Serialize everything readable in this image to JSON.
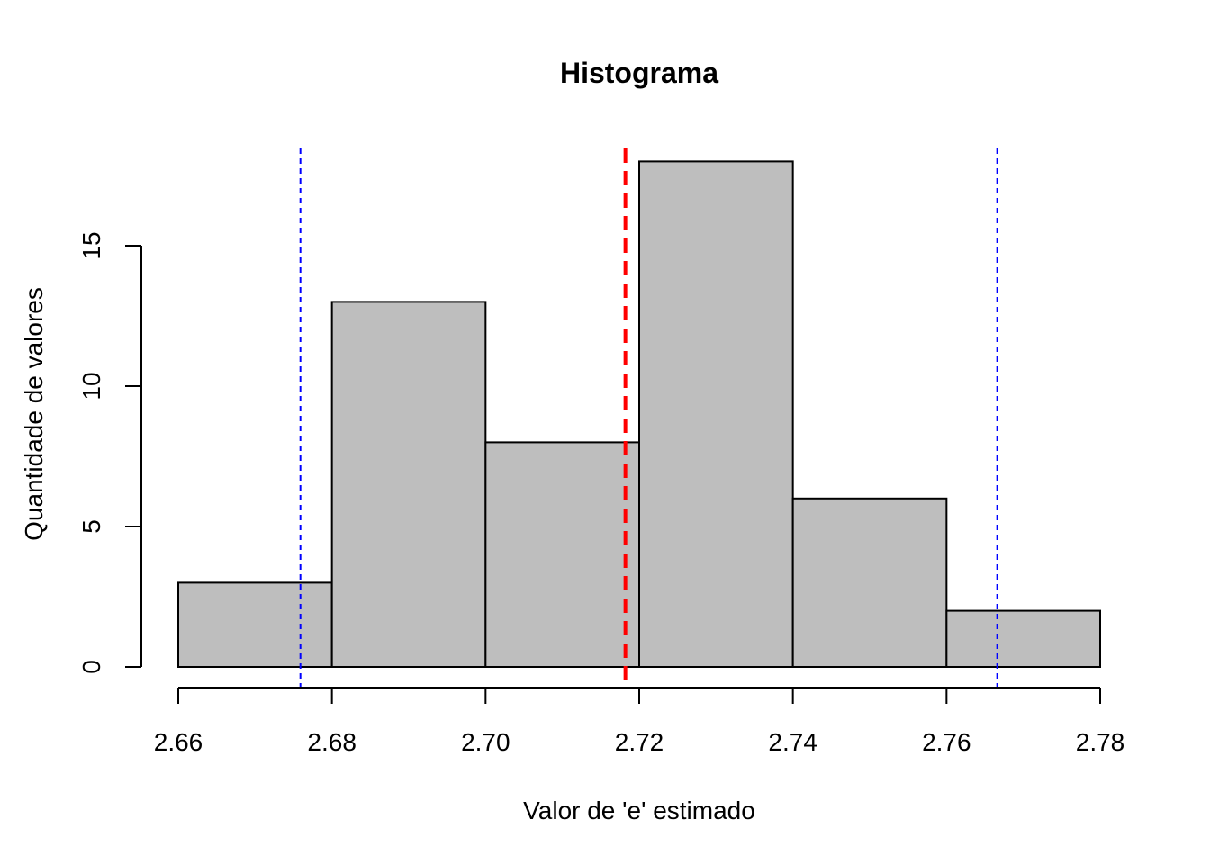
{
  "chart_data": {
    "type": "bar",
    "title": "Histograma",
    "xlabel": "Valor de 'e' estimado",
    "ylabel": "Quantidade de valores",
    "bins": [
      {
        "start": 2.66,
        "end": 2.68,
        "count": 3
      },
      {
        "start": 2.68,
        "end": 2.7,
        "count": 13
      },
      {
        "start": 2.7,
        "end": 2.72,
        "count": 8
      },
      {
        "start": 2.72,
        "end": 2.74,
        "count": 18
      },
      {
        "start": 2.74,
        "end": 2.76,
        "count": 6
      },
      {
        "start": 2.76,
        "end": 2.78,
        "count": 2
      }
    ],
    "xlim": [
      2.66,
      2.78
    ],
    "ylim": [
      0,
      18
    ],
    "x_ticks": [
      "2.66",
      "2.68",
      "2.70",
      "2.72",
      "2.74",
      "2.76",
      "2.78"
    ],
    "y_ticks": [
      "0",
      "5",
      "10",
      "15"
    ],
    "reference_lines": [
      {
        "x": 2.7182,
        "color": "#ff0000",
        "style": "dashed",
        "weight": "thick"
      },
      {
        "x": 2.6759,
        "color": "#0000ff",
        "style": "dotted",
        "weight": "thin"
      },
      {
        "x": 2.7666,
        "color": "#0000ff",
        "style": "dotted",
        "weight": "thin"
      }
    ],
    "bar_fill": "#bebebe",
    "bar_stroke": "#000000",
    "grid": false,
    "legend": "none"
  }
}
